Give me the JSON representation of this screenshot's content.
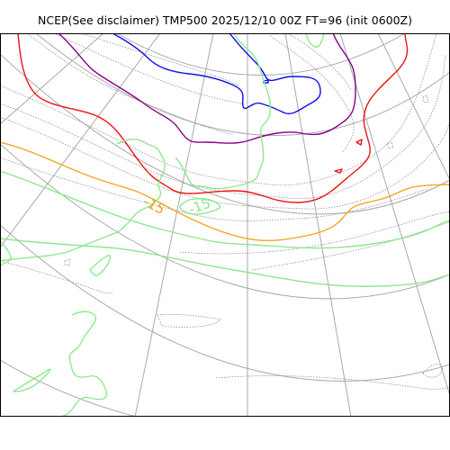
{
  "title": "NCEP(See disclaimer) TMP500 2025/12/10 00Z FT=96 (init 0600Z)",
  "map": {
    "variable": "TMP500",
    "valid_time": "2025/12/10 00Z",
    "forecast_hour": 96,
    "init": "0600Z",
    "contour_labels": [
      {
        "text": "-15",
        "color": "#e8a317"
      },
      {
        "text": "-15",
        "color": "#8ee88e"
      }
    ],
    "colors": {
      "green": "#8ee88e",
      "orange": "#f0a820",
      "red": "#ee1111",
      "purple": "#880088",
      "blue": "#1010ee",
      "graticule": "#a9a9a9",
      "coastline": "#8f8f8f"
    }
  }
}
